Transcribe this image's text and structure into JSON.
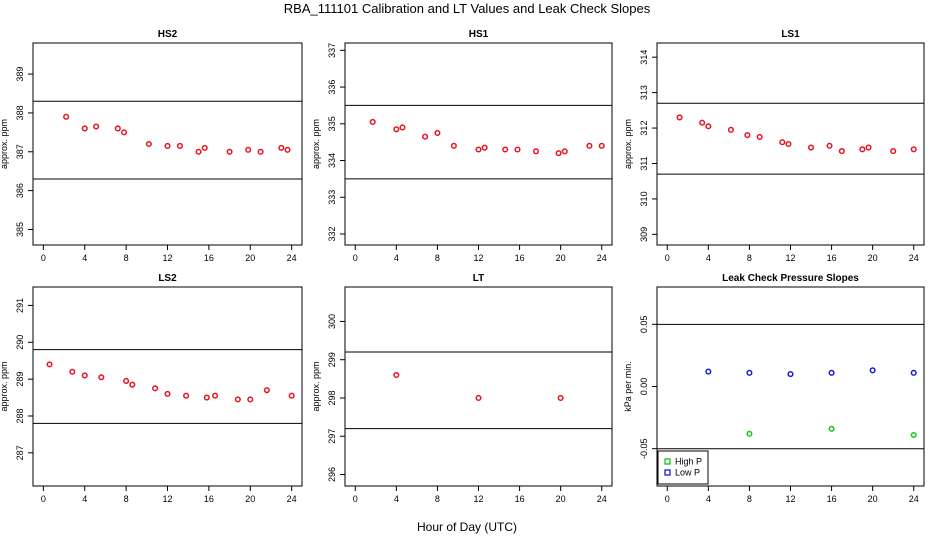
{
  "figure": {
    "title": "RBA_111101  Calibration and LT Values and Leak Check Slopes",
    "xlabel": "Hour of Day (UTC)"
  },
  "colors": {
    "calibration": "#e8141c",
    "high_p": "#19c419",
    "low_p": "#1a1ad6",
    "frame": "#000000"
  },
  "chart_data": [
    {
      "type": "scatter",
      "title": "HS2",
      "ylabel": "approx. ppm",
      "xlim": [
        -1,
        25
      ],
      "ylim": [
        384.6,
        389.8
      ],
      "xticks": [
        0,
        4,
        8,
        12,
        16,
        20,
        24
      ],
      "yticks": [
        385,
        386,
        387,
        388,
        389
      ],
      "hlines": [
        388.3,
        386.3
      ],
      "series": [
        {
          "marker": "circle",
          "color": "#e8141c",
          "x": [
            2.2,
            4.0,
            5.1,
            7.2,
            7.8,
            10.2,
            12.0,
            13.2,
            15.0,
            15.6,
            18.0,
            19.8,
            21.0,
            23.0,
            23.6
          ],
          "y": [
            387.9,
            387.6,
            387.65,
            387.6,
            387.5,
            387.2,
            387.15,
            387.15,
            387.0,
            387.1,
            387.0,
            387.05,
            387.0,
            387.1,
            387.05
          ]
        }
      ]
    },
    {
      "type": "scatter",
      "title": "HS1",
      "ylabel": "approx. ppm",
      "xlim": [
        -1,
        25
      ],
      "ylim": [
        331.7,
        337.2
      ],
      "xticks": [
        0,
        4,
        8,
        12,
        16,
        20,
        24
      ],
      "yticks": [
        332,
        333,
        334,
        335,
        336,
        337
      ],
      "hlines": [
        335.5,
        333.5
      ],
      "series": [
        {
          "marker": "circle",
          "color": "#e8141c",
          "x": [
            1.7,
            4.0,
            4.6,
            6.8,
            8.0,
            9.6,
            12.0,
            12.6,
            14.6,
            15.8,
            17.6,
            19.8,
            20.4,
            22.8,
            24.0
          ],
          "y": [
            335.05,
            334.85,
            334.9,
            334.65,
            334.75,
            334.4,
            334.3,
            334.35,
            334.3,
            334.3,
            334.25,
            334.2,
            334.25,
            334.4,
            334.4
          ]
        }
      ]
    },
    {
      "type": "scatter",
      "title": "LS1",
      "ylabel": "approx. ppm",
      "xlim": [
        -1,
        25
      ],
      "ylim": [
        308.7,
        314.4
      ],
      "xticks": [
        0,
        4,
        8,
        12,
        16,
        20,
        24
      ],
      "yticks": [
        309,
        310,
        311,
        312,
        313,
        314
      ],
      "hlines": [
        312.7,
        310.7
      ],
      "series": [
        {
          "marker": "circle",
          "color": "#e8141c",
          "x": [
            1.2,
            3.4,
            4.0,
            6.2,
            7.8,
            9.0,
            11.2,
            11.8,
            14.0,
            15.8,
            17.0,
            19.0,
            19.6,
            22.0,
            24.0
          ],
          "y": [
            312.3,
            312.15,
            312.05,
            311.95,
            311.8,
            311.75,
            311.6,
            311.55,
            311.45,
            311.5,
            311.35,
            311.4,
            311.45,
            311.35,
            311.4
          ]
        }
      ]
    },
    {
      "type": "scatter",
      "title": "LS2",
      "ylabel": "approx. ppm",
      "xlim": [
        -1,
        25
      ],
      "ylim": [
        286.1,
        291.5
      ],
      "xticks": [
        0,
        4,
        8,
        12,
        16,
        20,
        24
      ],
      "yticks": [
        287,
        288,
        289,
        290,
        291
      ],
      "hlines": [
        289.8,
        287.8
      ],
      "series": [
        {
          "marker": "circle",
          "color": "#e8141c",
          "x": [
            0.6,
            2.8,
            4.0,
            5.6,
            8.0,
            8.6,
            10.8,
            12.0,
            13.8,
            15.8,
            16.6,
            18.8,
            20.0,
            21.6,
            24.0
          ],
          "y": [
            289.4,
            289.2,
            289.1,
            289.05,
            288.95,
            288.85,
            288.75,
            288.6,
            288.55,
            288.5,
            288.55,
            288.45,
            288.45,
            288.7,
            288.55
          ]
        }
      ]
    },
    {
      "type": "scatter",
      "title": "LT",
      "ylabel": "approx. ppm",
      "xlim": [
        -1,
        25
      ],
      "ylim": [
        295.7,
        300.9
      ],
      "xticks": [
        0,
        4,
        8,
        12,
        16,
        20,
        24
      ],
      "yticks": [
        296,
        297,
        298,
        299,
        300
      ],
      "hlines": [
        299.2,
        297.2
      ],
      "series": [
        {
          "marker": "circle",
          "color": "#e8141c",
          "x": [
            4.0,
            12.0,
            20.0
          ],
          "y": [
            298.6,
            298.0,
            298.0
          ]
        }
      ]
    },
    {
      "type": "scatter",
      "title": "Leak Check Pressure Slopes",
      "ylabel": "kPa per min.",
      "xlim": [
        -1,
        25
      ],
      "ylim": [
        -0.08,
        0.08
      ],
      "xticks": [
        0,
        4,
        8,
        12,
        16,
        20,
        24
      ],
      "yticks": [
        -0.05,
        0.0,
        0.05
      ],
      "ytick_labels": [
        "-0.05",
        "0.00",
        "0.05"
      ],
      "hlines": [
        0.05,
        -0.05
      ],
      "legend": {
        "position": "bottom-left",
        "entries": [
          "High P",
          "Low P"
        ]
      },
      "series": [
        {
          "name": "High P",
          "marker": "circle",
          "color": "#19c419",
          "x": [
            8.0,
            16.0,
            24.0
          ],
          "y": [
            -0.038,
            -0.034,
            -0.039
          ]
        },
        {
          "name": "Low P",
          "marker": "circle",
          "color": "#1a1ad6",
          "x": [
            4.0,
            8.0,
            12.0,
            16.0,
            20.0,
            24.0
          ],
          "y": [
            0.012,
            0.011,
            0.01,
            0.011,
            0.013,
            0.011
          ]
        }
      ]
    }
  ]
}
